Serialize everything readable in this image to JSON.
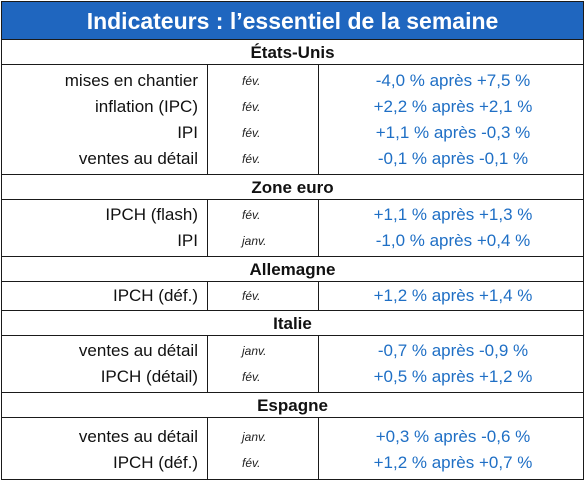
{
  "title": "Indicateurs : l’essentiel de la semaine",
  "sections": [
    {
      "name": "États-Unis",
      "rows": [
        {
          "label": "mises en chantier",
          "period": "fév.",
          "value": "-4,0 % après +7,5 %"
        },
        {
          "label": "inflation (IPC)",
          "period": "fév.",
          "value": "+2,2 % après +2,1 %"
        },
        {
          "label": "IPI",
          "period": "fév.",
          "value": "+1,1 % après -0,3 %"
        },
        {
          "label": "ventes au détail",
          "period": "fév.",
          "value": "-0,1 % après -0,1 %"
        }
      ]
    },
    {
      "name": "Zone euro",
      "rows": [
        {
          "label": "IPCH (flash)",
          "period": "fév.",
          "value": "+1,1 % après +1,3 %"
        },
        {
          "label": "IPI",
          "period": "janv.",
          "value": "-1,0 % après +0,4 %"
        }
      ]
    },
    {
      "name": "Allemagne",
      "rows": [
        {
          "label": "IPCH (déf.)",
          "period": "fév.",
          "value": "+1,2 % après +1,4 %"
        }
      ]
    },
    {
      "name": "Italie",
      "rows": [
        {
          "label": "ventes au détail",
          "period": "janv.",
          "value": "-0,7 % après -0,9 %"
        },
        {
          "label": "IPCH (détail)",
          "period": "fév.",
          "value": "+0,5 % après +1,2 %"
        }
      ]
    },
    {
      "name": "Espagne",
      "rows": [
        {
          "label": "ventes au détail",
          "period": "janv.",
          "value": "+0,3 % après -0,6 %"
        },
        {
          "label": "IPCH (déf.)",
          "period": "fév.",
          "value": "+1,2 % après +0,7 %"
        }
      ]
    }
  ],
  "colors": {
    "header_bg": "#1f66bf",
    "header_text": "#ffffff",
    "value_text": "#1f6fc5",
    "border": "#1a1a1a"
  }
}
